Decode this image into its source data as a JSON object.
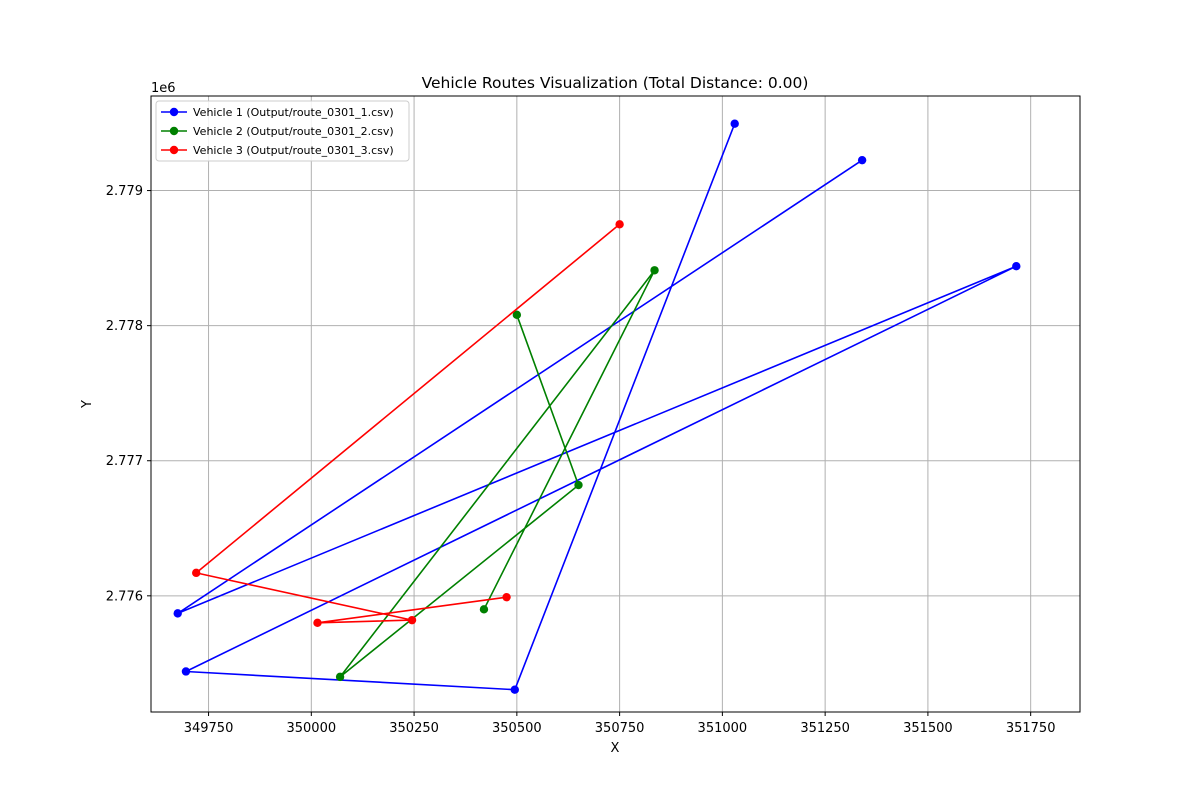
{
  "chart_data": {
    "type": "line",
    "title": "Vehicle Routes Visualization (Total Distance: 0.00)",
    "xlabel": "X",
    "ylabel": "Y",
    "y_offset_label": "1e6",
    "xlim": [
      349610,
      351870
    ],
    "ylim": [
      2775140,
      2779700
    ],
    "x_ticks": [
      349750,
      350000,
      350250,
      350500,
      350750,
      351000,
      351250,
      351500,
      351750
    ],
    "x_tick_labels": [
      "349750",
      "350000",
      "350250",
      "350500",
      "350750",
      "351000",
      "351250",
      "351500",
      "351750"
    ],
    "y_ticks": [
      2776000,
      2777000,
      2778000,
      2779000
    ],
    "y_tick_labels": [
      "2.776",
      "2.777",
      "2.778",
      "2.779"
    ],
    "grid": true,
    "legend_position": "top-left",
    "series": [
      {
        "name": "Vehicle 1 (Output/route_0301_1.csv)",
        "color": "#0000ff",
        "x": [
          351030,
          350495,
          349695,
          351715,
          349675,
          351340
        ],
        "y": [
          2779495,
          2775305,
          2775440,
          2778440,
          2775870,
          2779225
        ]
      },
      {
        "name": "Vehicle 2 (Output/route_0301_2.csv)",
        "color": "#008000",
        "x": [
          350500,
          350650,
          350070,
          350835,
          350420
        ],
        "y": [
          2778080,
          2776820,
          2775400,
          2778410,
          2775900
        ]
      },
      {
        "name": "Vehicle 3 (Output/route_0301_3.csv)",
        "color": "#ff0000",
        "x": [
          350750,
          349720,
          350245,
          350015,
          350475
        ],
        "y": [
          2778750,
          2776170,
          2775820,
          2775800,
          2775990
        ]
      }
    ]
  }
}
